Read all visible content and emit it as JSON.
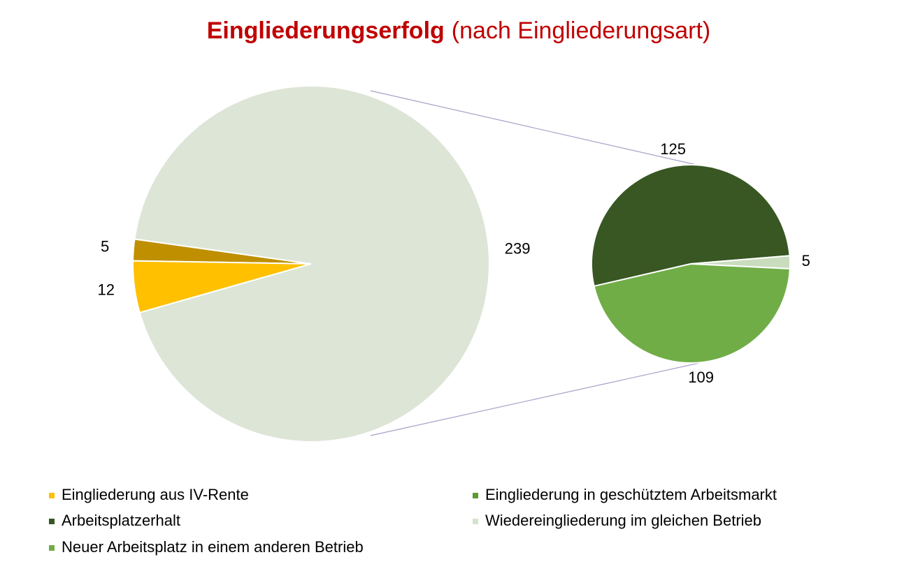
{
  "chart_data": {
    "type": "pie-of-pie",
    "title": "Eingliederungserfolg",
    "subtitle": "(nach Eingliederungsart)",
    "main": {
      "values": [
        5,
        12,
        239
      ],
      "colors": [
        "#bf8f00",
        "#ffc000",
        "#dde5d6"
      ]
    },
    "secondary": {
      "values": [
        125,
        5,
        109
      ],
      "colors": [
        "#385723",
        "#c9dcbd",
        "#70ad47"
      ]
    },
    "legend": [
      {
        "name": "Eingliederung aus IV-Rente",
        "color": "#ffc000"
      },
      {
        "name": "Arbeitsplatzerhalt",
        "color": "#385723"
      },
      {
        "name": "Neuer Arbeitsplatz in einem anderen Betrieb",
        "color": "#70ad47"
      },
      {
        "name": "Eingliederung in geschütztem Arbeitsmarkt",
        "color": "#5e9a2e"
      },
      {
        "name": "Wiedereingliederung im gleichen Betrieb",
        "color": "#d6e3cc"
      }
    ]
  }
}
